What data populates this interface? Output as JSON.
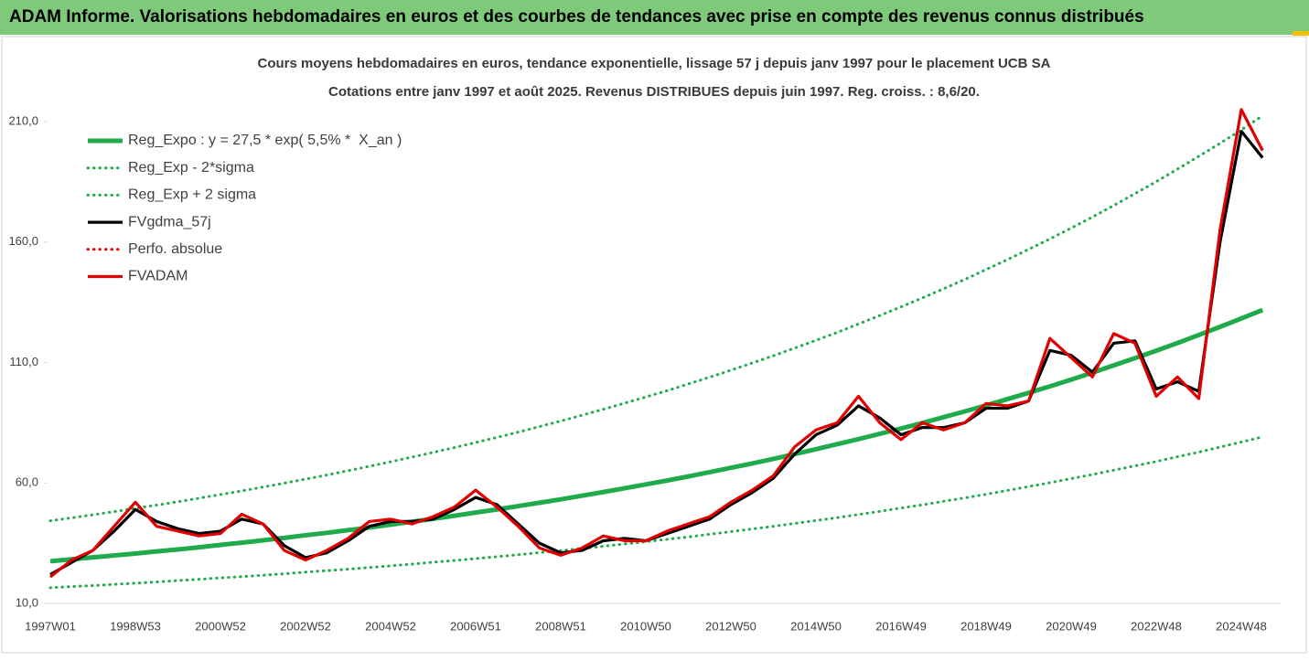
{
  "chart_data": {
    "type": "line",
    "title": "ADAM Informe. Valorisations hebdomadaires en euros et des courbes de tendances avec prise en compte des revenus connus distribués",
    "subtitle": [
      "Cours moyens hebdomadaires en euros, tendance exponentielle, lissage 57 j depuis janv 1997 pour le placement UCB SA",
      "Cotations entre janv 1997 et août 2025. Revenus DISTRIBUES depuis juin 1997. Reg. croiss. : 8,6/20."
    ],
    "categories": [
      "1997W01",
      null,
      null,
      null,
      "1998W53",
      null,
      null,
      null,
      "2000W52",
      null,
      null,
      null,
      "2002W52",
      null,
      null,
      null,
      "2004W52",
      null,
      null,
      null,
      "2006W51",
      null,
      null,
      null,
      "2008W51",
      null,
      null,
      null,
      "2010W50",
      null,
      null,
      null,
      "2012W50",
      null,
      null,
      null,
      "2014W50",
      null,
      null,
      null,
      "2016W49",
      null,
      null,
      null,
      "2018W49",
      null,
      null,
      null,
      "2020W49",
      null,
      null,
      null,
      "2022W48",
      null,
      null,
      null,
      "2024W48",
      null
    ],
    "ylim": [
      10,
      225
    ],
    "yticks": [
      {
        "value": 10,
        "label": "10,0"
      },
      {
        "value": 60,
        "label": "60,0"
      },
      {
        "value": 110,
        "label": "110,0"
      },
      {
        "value": 160,
        "label": "160,0"
      },
      {
        "value": 210,
        "label": "210,0"
      }
    ],
    "grid": false,
    "legend": "upper left",
    "series": [
      {
        "name": "Reg_Expo : y = 27,5 * exp( 5,5% *  X_an )",
        "color": "#1faa4b",
        "dash": "solid",
        "values": [
          27.5,
          28.3,
          29.1,
          29.9,
          30.7,
          31.6,
          32.4,
          33.3,
          34.3,
          35.2,
          36.2,
          37.2,
          38.3,
          39.3,
          40.4,
          41.5,
          42.7,
          43.9,
          45.1,
          46.4,
          47.7,
          49.0,
          50.4,
          51.8,
          53.2,
          54.7,
          56.2,
          57.8,
          59.4,
          61.0,
          62.7,
          64.5,
          66.3,
          68.1,
          70.0,
          72.0,
          74.0,
          76.1,
          78.2,
          80.4,
          82.6,
          84.9,
          87.3,
          89.7,
          92.2,
          94.8,
          97.4,
          100.1,
          102.9,
          105.8,
          108.8,
          111.8,
          114.9,
          118.1,
          121.4,
          124.8,
          128.3,
          131.8
        ]
      },
      {
        "name": "Reg_Exp - 2*sigma",
        "color": "#1faa4b",
        "dash": "dotted",
        "values": [
          16.5,
          17.0,
          17.4,
          17.9,
          18.4,
          18.9,
          19.5,
          20.0,
          20.6,
          21.1,
          21.7,
          22.3,
          23.0,
          23.6,
          24.2,
          24.9,
          25.6,
          26.3,
          27.1,
          27.8,
          28.6,
          29.4,
          30.2,
          31.1,
          31.9,
          32.8,
          33.7,
          34.7,
          35.6,
          36.6,
          37.6,
          38.7,
          39.8,
          40.9,
          42.0,
          43.2,
          44.4,
          45.6,
          46.9,
          48.2,
          49.6,
          50.9,
          52.4,
          53.8,
          55.3,
          56.9,
          58.5,
          60.1,
          61.8,
          63.5,
          65.3,
          67.1,
          68.9,
          70.9,
          72.8,
          74.9,
          77.0,
          79.1
        ]
      },
      {
        "name": "Reg_Exp + 2 sigma",
        "color": "#1faa4b",
        "dash": "dotted",
        "values": [
          44.3,
          45.5,
          46.8,
          48.1,
          49.5,
          50.8,
          52.2,
          53.7,
          55.2,
          56.7,
          58.3,
          59.9,
          61.6,
          63.3,
          65.1,
          66.9,
          68.8,
          70.7,
          72.7,
          74.7,
          76.8,
          78.9,
          81.1,
          83.4,
          85.7,
          88.1,
          90.6,
          93.1,
          95.7,
          98.3,
          101.1,
          103.9,
          106.8,
          109.8,
          112.8,
          116.0,
          119.2,
          122.5,
          126.0,
          129.5,
          133.1,
          136.8,
          140.6,
          144.5,
          148.6,
          152.7,
          157.0,
          161.3,
          165.8,
          170.4,
          175.2,
          180.1,
          185.1,
          190.3,
          195.6,
          201.0,
          206.6,
          212.4
        ]
      },
      {
        "name": "FVgdma_57j",
        "color": "#000000",
        "dash": "solid",
        "values": [
          22,
          27,
          32,
          40,
          49,
          44,
          41,
          39,
          40,
          45,
          43,
          34,
          29,
          31,
          36,
          42,
          44,
          44,
          45,
          49,
          54,
          51,
          43,
          35,
          31,
          32,
          36,
          37,
          36,
          39,
          42,
          45,
          51,
          56,
          62,
          72,
          80,
          84,
          92,
          87,
          80,
          83,
          83,
          85,
          91,
          91,
          94,
          115,
          113,
          106,
          118,
          119,
          99,
          102,
          98,
          160,
          206,
          195
        ]
      },
      {
        "name": "Perfo. absolue",
        "color": "#e00000",
        "dash": "dotted",
        "values": [
          null,
          null,
          null,
          null,
          null,
          null,
          null,
          null,
          null,
          null,
          null,
          null,
          null,
          null,
          null,
          null,
          null,
          null,
          null,
          null,
          null,
          null,
          null,
          null,
          null,
          null,
          null,
          null,
          null,
          null,
          null,
          null,
          null,
          null,
          null,
          null,
          null,
          null,
          null,
          null,
          null,
          null,
          null,
          null,
          null,
          null,
          null,
          null,
          null,
          null,
          null,
          null,
          null,
          null,
          null,
          null,
          null,
          null
        ]
      },
      {
        "name": "FVADAM",
        "color": "#e00000",
        "dash": "solid",
        "values": [
          21,
          28,
          32,
          42,
          52,
          42,
          40,
          38,
          39,
          47,
          43,
          32,
          28,
          32,
          37,
          44,
          45,
          43,
          46,
          50,
          57,
          50,
          42,
          33,
          30,
          33,
          38,
          36,
          36,
          40,
          43,
          46,
          52,
          57,
          63,
          75,
          82,
          85,
          96,
          85,
          78,
          85,
          82,
          85,
          93,
          92,
          94,
          120,
          112,
          104,
          122,
          118,
          96,
          104,
          95,
          165,
          215,
          198
        ]
      }
    ]
  }
}
